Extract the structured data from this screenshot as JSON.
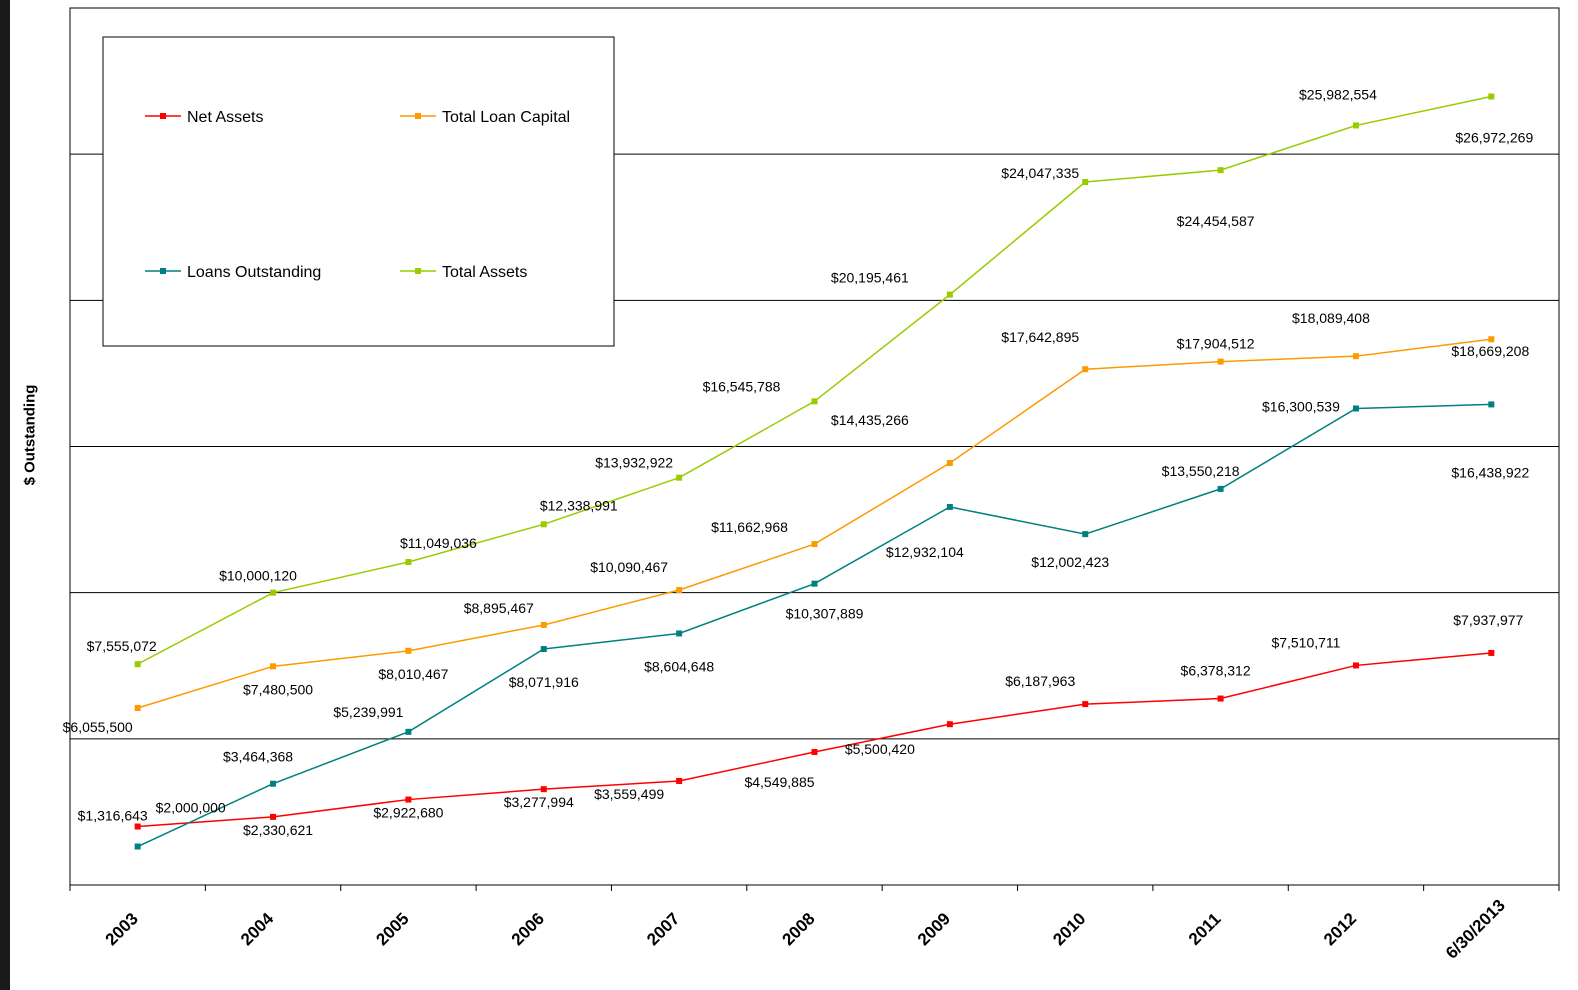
{
  "chart_data": {
    "type": "line",
    "title": "",
    "xlabel": "",
    "ylabel": "$ Outstanding",
    "ylim": [
      0,
      30000000
    ],
    "grid": true,
    "legend_position": "top-left",
    "categories": [
      "2003",
      "2004",
      "2005",
      "2006",
      "2007",
      "2008",
      "2009",
      "2010",
      "2011",
      "2012",
      "6/30/2013"
    ],
    "series": [
      {
        "name": "Net Assets",
        "color": "#ff0000",
        "values": [
          2000000,
          2330621,
          2922680,
          3277994,
          3559499,
          4549885,
          5500420,
          6187963,
          6378312,
          7510711,
          7937977
        ],
        "labels": [
          "$2,000,000",
          "$2,330,621",
          "$2,922,680",
          "$3,277,994",
          "$3,559,499",
          "$4,549,885",
          "$5,500,420",
          "$6,187,963",
          "$6,378,312",
          "$7,510,711",
          "$7,937,977"
        ]
      },
      {
        "name": "Total Loan Capital",
        "color": "#ff9900",
        "values": [
          6055500,
          7480500,
          8010467,
          8895467,
          10090467,
          11662968,
          14435266,
          17642895,
          17904512,
          18089408,
          18669208
        ],
        "labels": [
          "$6,055,500",
          "$7,480,500",
          "$8,010,467",
          "$8,895,467",
          "$10,090,467",
          "$11,662,968",
          "$14,435,266",
          "$17,642,895",
          "$17,904,512",
          "$18,089,408",
          "$18,669,208"
        ]
      },
      {
        "name": "Loans Outstanding",
        "color": "#008080",
        "values": [
          1316643,
          3464368,
          5239991,
          8071916,
          8604648,
          10307889,
          12932104,
          12002423,
          13550218,
          16300539,
          16438922
        ],
        "labels": [
          "$1,316,643",
          "$3,464,368",
          "$5,239,991",
          "$8,071,916",
          "$8,604,648",
          "$10,307,889",
          "$12,932,104",
          "$12,002,423",
          "$13,550,218",
          "$16,300,539",
          "$16,438,922"
        ]
      },
      {
        "name": "Total Assets",
        "color": "#99cc00",
        "values": [
          7555072,
          10000120,
          11049036,
          12338991,
          13932922,
          16545788,
          20195461,
          24047335,
          24454587,
          25982554,
          26972269
        ],
        "labels": [
          "$7,555,072",
          "$10,000,120",
          "$11,049,036",
          "$12,338,991",
          "$13,932,922",
          "$16,545,788",
          "$20,195,461",
          "$24,047,335",
          "$24,454,587",
          "$25,982,554",
          "$26,972,269"
        ]
      }
    ]
  }
}
